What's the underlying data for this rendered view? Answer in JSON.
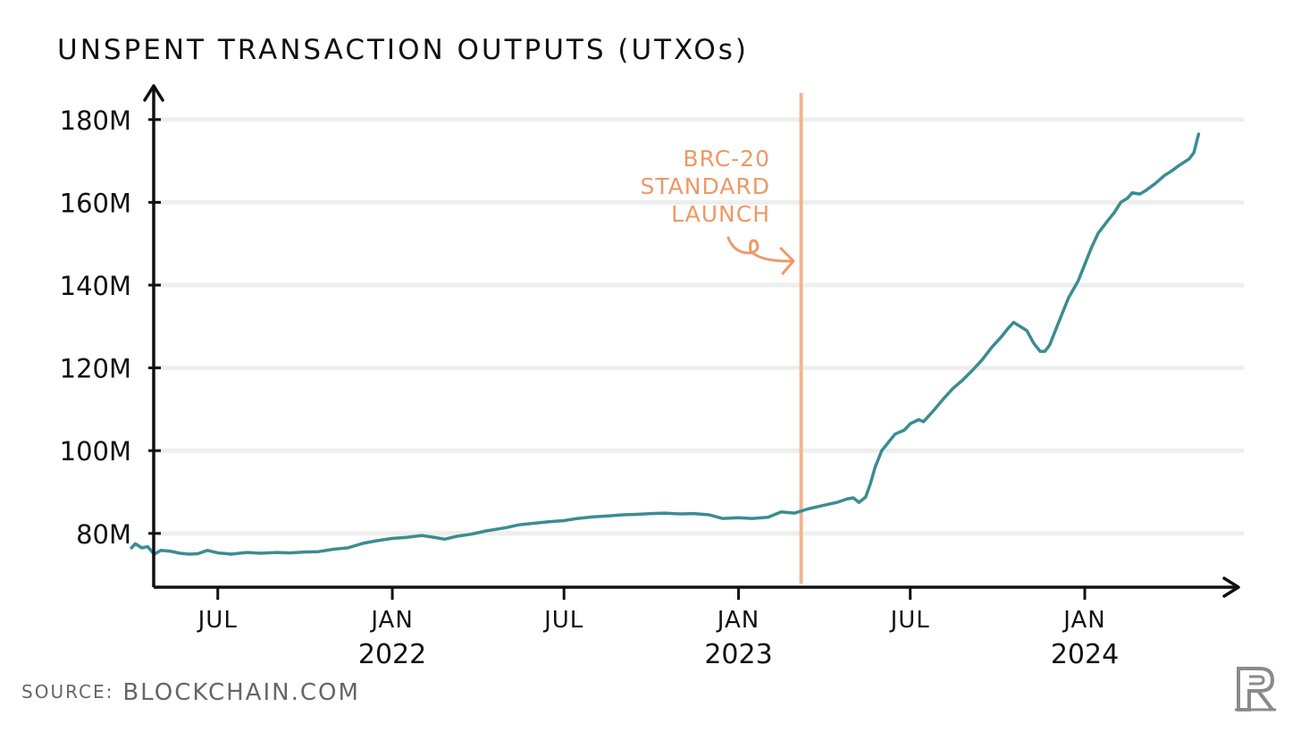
{
  "title": "UNSPENT TRANSACTION OUTPUTS (UTXOs)",
  "source": {
    "label": "SOURCE:",
    "value": "BLOCKCHAIN.COM"
  },
  "annotation": {
    "lines": [
      "BRC-20",
      "STANDARD",
      "LAUNCH"
    ],
    "date": "2023-03-08",
    "color": "#f2b48e"
  },
  "logo": {
    "icon": "brand-monogram-icon"
  },
  "colors": {
    "line": "#3a8d91",
    "axis": "#111111",
    "grid": "#eeeeee",
    "annotation_text": "#ee9966"
  },
  "chart_data": {
    "type": "line",
    "title": "UNSPENT TRANSACTION OUTPUTS (UTXOs)",
    "xlabel": "",
    "ylabel": "",
    "xlim": [
      "2021-04-15",
      "2024-05-10"
    ],
    "ylim": [
      67,
      186
    ],
    "grid": true,
    "y_ticks": [
      80,
      100,
      120,
      140,
      160,
      180
    ],
    "y_tick_labels": [
      "80M",
      "100M",
      "120M",
      "140M",
      "160M",
      "180M"
    ],
    "x_ticks": [
      {
        "date": "2021-07-01",
        "label": "JUL",
        "year": ""
      },
      {
        "date": "2022-01-01",
        "label": "JAN",
        "year": "2022"
      },
      {
        "date": "2022-07-01",
        "label": "JUL",
        "year": ""
      },
      {
        "date": "2023-01-01",
        "label": "JAN",
        "year": "2023"
      },
      {
        "date": "2023-07-01",
        "label": "JUL",
        "year": ""
      },
      {
        "date": "2024-01-01",
        "label": "JAN",
        "year": "2024"
      }
    ],
    "series": [
      {
        "unit": "millions",
        "points": [
          [
            "2021-04-01",
            76.5
          ],
          [
            "2021-04-05",
            77.5
          ],
          [
            "2021-04-12",
            76.5
          ],
          [
            "2021-04-18",
            76.8
          ],
          [
            "2021-04-25",
            75.0
          ],
          [
            "2021-05-02",
            75.9
          ],
          [
            "2021-05-12",
            75.7
          ],
          [
            "2021-05-22",
            75.2
          ],
          [
            "2021-06-01",
            75.0
          ],
          [
            "2021-06-10",
            75.1
          ],
          [
            "2021-06-20",
            75.9
          ],
          [
            "2021-07-01",
            75.3
          ],
          [
            "2021-07-15",
            75.0
          ],
          [
            "2021-08-01",
            75.4
          ],
          [
            "2021-08-15",
            75.2
          ],
          [
            "2021-09-01",
            75.4
          ],
          [
            "2021-09-15",
            75.3
          ],
          [
            "2021-10-01",
            75.5
          ],
          [
            "2021-10-15",
            75.6
          ],
          [
            "2021-11-01",
            76.2
          ],
          [
            "2021-11-15",
            76.5
          ],
          [
            "2021-12-01",
            77.6
          ],
          [
            "2021-12-15",
            78.2
          ],
          [
            "2022-01-01",
            78.8
          ],
          [
            "2022-01-15",
            79.0
          ],
          [
            "2022-02-01",
            79.5
          ],
          [
            "2022-02-15",
            79.0
          ],
          [
            "2022-02-25",
            78.6
          ],
          [
            "2022-03-10",
            79.3
          ],
          [
            "2022-03-25",
            79.8
          ],
          [
            "2022-04-10",
            80.6
          ],
          [
            "2022-05-01",
            81.4
          ],
          [
            "2022-05-15",
            82.1
          ],
          [
            "2022-06-01",
            82.5
          ],
          [
            "2022-06-15",
            82.8
          ],
          [
            "2022-07-01",
            83.1
          ],
          [
            "2022-07-15",
            83.6
          ],
          [
            "2022-08-01",
            84.0
          ],
          [
            "2022-08-15",
            84.2
          ],
          [
            "2022-09-01",
            84.5
          ],
          [
            "2022-09-15",
            84.6
          ],
          [
            "2022-10-01",
            84.8
          ],
          [
            "2022-10-15",
            84.9
          ],
          [
            "2022-11-01",
            84.7
          ],
          [
            "2022-11-15",
            84.8
          ],
          [
            "2022-12-01",
            84.5
          ],
          [
            "2022-12-15",
            83.6
          ],
          [
            "2023-01-01",
            83.8
          ],
          [
            "2023-01-15",
            83.6
          ],
          [
            "2023-02-01",
            83.9
          ],
          [
            "2023-02-15",
            85.2
          ],
          [
            "2023-03-01",
            84.9
          ],
          [
            "2023-03-15",
            85.9
          ],
          [
            "2023-04-01",
            86.8
          ],
          [
            "2023-04-15",
            87.5
          ],
          [
            "2023-04-25",
            88.3
          ],
          [
            "2023-05-02",
            88.6
          ],
          [
            "2023-05-08",
            87.5
          ],
          [
            "2023-05-15",
            88.8
          ],
          [
            "2023-05-20",
            92.0
          ],
          [
            "2023-05-25",
            96.0
          ],
          [
            "2023-06-01",
            100.0
          ],
          [
            "2023-06-08",
            102.0
          ],
          [
            "2023-06-15",
            104.0
          ],
          [
            "2023-06-25",
            105.0
          ],
          [
            "2023-07-01",
            106.5
          ],
          [
            "2023-07-10",
            107.5
          ],
          [
            "2023-07-15",
            107.0
          ],
          [
            "2023-07-25",
            109.5
          ],
          [
            "2023-08-05",
            112.5
          ],
          [
            "2023-08-15",
            115.0
          ],
          [
            "2023-08-25",
            117.0
          ],
          [
            "2023-09-05",
            119.5
          ],
          [
            "2023-09-15",
            122.0
          ],
          [
            "2023-09-25",
            125.0
          ],
          [
            "2023-10-05",
            127.5
          ],
          [
            "2023-10-12",
            129.5
          ],
          [
            "2023-10-18",
            131.0
          ],
          [
            "2023-10-25",
            130.0
          ],
          [
            "2023-11-01",
            129.0
          ],
          [
            "2023-11-08",
            126.0
          ],
          [
            "2023-11-15",
            124.0
          ],
          [
            "2023-11-20",
            124.0
          ],
          [
            "2023-11-25",
            125.5
          ],
          [
            "2023-12-01",
            129.0
          ],
          [
            "2023-12-08",
            133.0
          ],
          [
            "2023-12-15",
            137.0
          ],
          [
            "2023-12-25",
            141.0
          ],
          [
            "2024-01-01",
            145.0
          ],
          [
            "2024-01-08",
            149.0
          ],
          [
            "2024-01-15",
            152.5
          ],
          [
            "2024-01-25",
            155.5
          ],
          [
            "2024-02-01",
            157.5
          ],
          [
            "2024-02-08",
            160.0
          ],
          [
            "2024-02-15",
            161.0
          ],
          [
            "2024-02-20",
            162.3
          ],
          [
            "2024-02-28",
            162.0
          ],
          [
            "2024-03-05",
            162.8
          ],
          [
            "2024-03-15",
            164.5
          ],
          [
            "2024-03-25",
            166.5
          ],
          [
            "2024-04-01",
            167.5
          ],
          [
            "2024-04-10",
            169.0
          ],
          [
            "2024-04-20",
            170.5
          ],
          [
            "2024-04-25",
            172.0
          ],
          [
            "2024-04-30",
            176.5
          ]
        ]
      }
    ]
  }
}
